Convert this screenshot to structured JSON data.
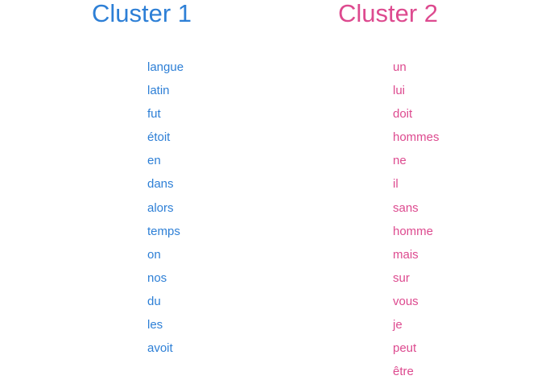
{
  "colors": {
    "cluster_1": "#2d7fd6",
    "cluster_2": "#dd4a8f"
  },
  "clusters": [
    {
      "title": "Cluster 1",
      "words": [
        "langue",
        "latin",
        "fut",
        "étoit",
        "en",
        "dans",
        "alors",
        "temps",
        "on",
        "nos",
        "du",
        "les",
        "avoit"
      ]
    },
    {
      "title": "Cluster 2",
      "words": [
        "un",
        "lui",
        "doit",
        "hommes",
        "ne",
        "il",
        "sans",
        "homme",
        "mais",
        "sur",
        "vous",
        "je",
        "peut",
        "être"
      ]
    }
  ]
}
